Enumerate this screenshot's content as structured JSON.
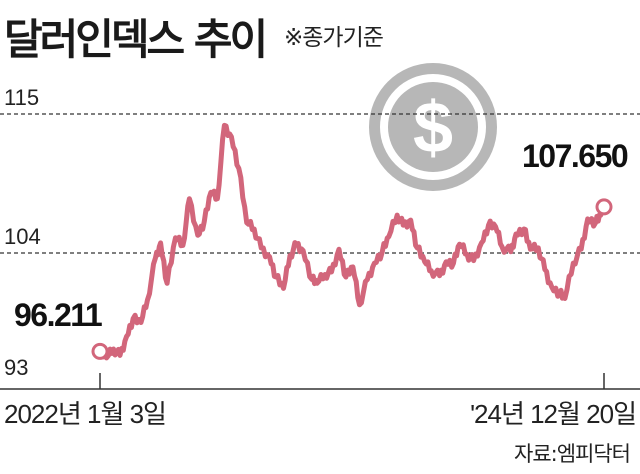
{
  "header": {
    "title": "달러인덱스 추이",
    "note": "※종가기준"
  },
  "source": "자료:엠피닥터",
  "colors": {
    "line": "#d2667b",
    "coin": "#b7b7b7",
    "grid": "#333333"
  },
  "icons": {
    "coin": "dollar-coin-icon"
  },
  "chart_data": {
    "type": "line",
    "title": "달러인덱스 추이",
    "xlabel": "",
    "ylabel": "",
    "ylim": [
      93,
      115
    ],
    "yticks": [
      93,
      104,
      115
    ],
    "ytick_labels": [
      "93",
      "104",
      "115"
    ],
    "gridlines": [
      104,
      115
    ],
    "xtick_labels": [
      "2022년 1월 3일",
      "'24년 12월 20일"
    ],
    "start_label": "96.211",
    "end_label": "107.650",
    "series": [
      {
        "points": [
          [
            "2022-01-03",
            96.21
          ],
          [
            "2022-01-17",
            95.7
          ],
          [
            "2022-02-01",
            96.4
          ],
          [
            "2022-02-15",
            95.9
          ],
          [
            "2022-03-01",
            97.4
          ],
          [
            "2022-03-15",
            98.8
          ],
          [
            "2022-04-01",
            98.5
          ],
          [
            "2022-04-15",
            100.3
          ],
          [
            "2022-05-02",
            103.6
          ],
          [
            "2022-05-13",
            104.8
          ],
          [
            "2022-05-27",
            101.6
          ],
          [
            "2022-06-14",
            105.2
          ],
          [
            "2022-06-30",
            104.6
          ],
          [
            "2022-07-14",
            108.3
          ],
          [
            "2022-08-01",
            105.4
          ],
          [
            "2022-08-15",
            106.5
          ],
          [
            "2022-08-29",
            108.8
          ],
          [
            "2022-09-12",
            108.3
          ],
          [
            "2022-09-27",
            114.1
          ],
          [
            "2022-10-12",
            113.2
          ],
          [
            "2022-10-28",
            110.7
          ],
          [
            "2022-11-14",
            106.4
          ],
          [
            "2022-11-30",
            105.9
          ],
          [
            "2022-12-15",
            104.4
          ],
          [
            "2023-01-02",
            103.7
          ],
          [
            "2023-01-16",
            102.1
          ],
          [
            "2023-02-01",
            101.2
          ],
          [
            "2023-02-15",
            103.8
          ],
          [
            "2023-03-01",
            104.7
          ],
          [
            "2023-03-15",
            104.2
          ],
          [
            "2023-04-03",
            101.9
          ],
          [
            "2023-04-14",
            101.6
          ],
          [
            "2023-05-01",
            102.3
          ],
          [
            "2023-05-15",
            102.5
          ],
          [
            "2023-05-31",
            104.3
          ],
          [
            "2023-06-15",
            102.1
          ],
          [
            "2023-06-30",
            102.9
          ],
          [
            "2023-07-14",
            99.9
          ],
          [
            "2023-07-31",
            101.9
          ],
          [
            "2023-08-15",
            103.2
          ],
          [
            "2023-09-01",
            104.1
          ],
          [
            "2023-09-15",
            105.3
          ],
          [
            "2023-10-03",
            107.0
          ],
          [
            "2023-10-16",
            106.2
          ],
          [
            "2023-11-01",
            106.6
          ],
          [
            "2023-11-15",
            104.4
          ],
          [
            "2023-12-01",
            103.3
          ],
          [
            "2023-12-15",
            102.6
          ],
          [
            "2024-01-02",
            102.2
          ],
          [
            "2024-01-16",
            103.3
          ],
          [
            "2024-02-01",
            103.2
          ],
          [
            "2024-02-14",
            104.7
          ],
          [
            "2024-03-01",
            103.9
          ],
          [
            "2024-03-15",
            103.4
          ],
          [
            "2024-04-01",
            104.8
          ],
          [
            "2024-04-16",
            106.2
          ],
          [
            "2024-05-01",
            106.1
          ],
          [
            "2024-05-15",
            104.5
          ],
          [
            "2024-06-03",
            104.1
          ],
          [
            "2024-06-14",
            105.5
          ],
          [
            "2024-07-01",
            105.9
          ],
          [
            "2024-07-15",
            104.3
          ],
          [
            "2024-08-01",
            104.4
          ],
          [
            "2024-08-15",
            102.7
          ],
          [
            "2024-08-30",
            101.3
          ],
          [
            "2024-09-16",
            100.8
          ],
          [
            "2024-09-27",
            100.4
          ],
          [
            "2024-10-15",
            103.2
          ],
          [
            "2024-11-01",
            104.3
          ],
          [
            "2024-11-15",
            106.7
          ],
          [
            "2024-12-02",
            106.4
          ],
          [
            "2024-12-13",
            107.0
          ],
          [
            "2024-12-20",
            107.65
          ]
        ]
      }
    ]
  }
}
